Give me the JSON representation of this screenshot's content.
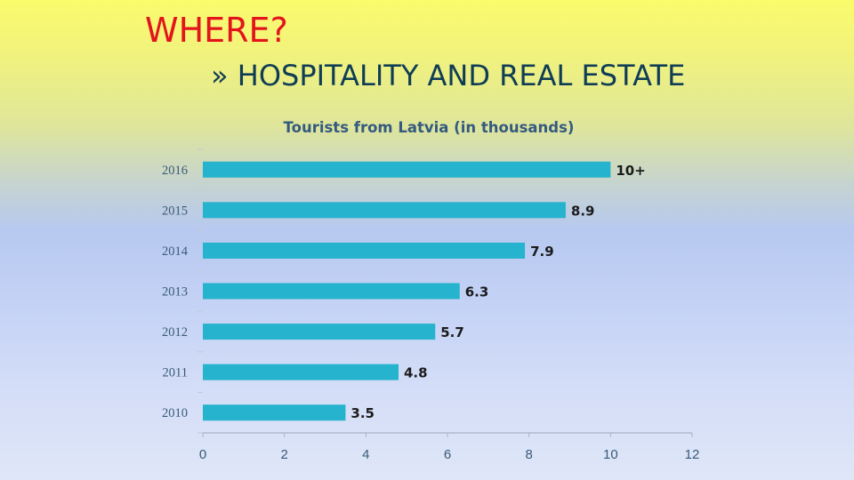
{
  "slide": {
    "title": "WHERE?",
    "subtitle": "» HOSPITALITY AND REAL ESTATE"
  },
  "colors": {
    "title": "#e3141b",
    "subtitle": "#0f3d55",
    "bar": "#25b3cd",
    "axis": "#a9b4c4"
  },
  "chart_data": {
    "type": "bar",
    "orientation": "horizontal",
    "title": "Tourists from Latvia (in thousands)",
    "xlabel": "",
    "ylabel": "",
    "categories": [
      "2016",
      "2015",
      "2014",
      "2013",
      "2012",
      "2011",
      "2010"
    ],
    "values": [
      10,
      8.9,
      7.9,
      6.3,
      5.7,
      4.8,
      3.5
    ],
    "data_labels": [
      "10+",
      "8.9",
      "7.9",
      "6.3",
      "5.7",
      "4.8",
      "3.5"
    ],
    "xlim": [
      0,
      12
    ],
    "xticks": [
      "0",
      "2",
      "4",
      "6",
      "8",
      "10",
      "12"
    ],
    "grid": false,
    "legend": "none"
  }
}
